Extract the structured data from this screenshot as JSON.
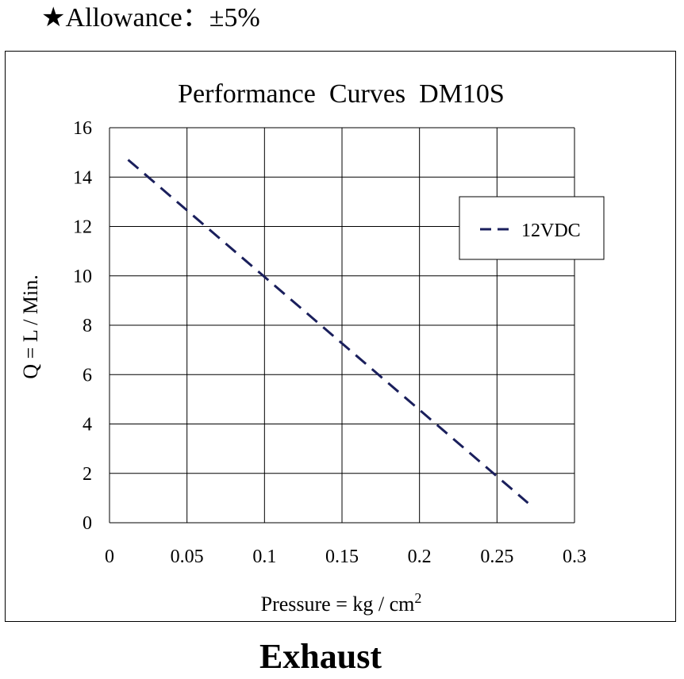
{
  "header": {
    "star_glyph": "★",
    "allowance_text": "Allowance：±5%"
  },
  "chart_data": {
    "type": "line",
    "title": "Performance  Curves  DM10S",
    "xlabel": "Pressure = kg / cm",
    "xlabel_superscript": "2",
    "ylabel": "Q = L / Min.",
    "xlim": [
      0,
      0.3
    ],
    "ylim": [
      0,
      16
    ],
    "xticks": [
      0,
      0.05,
      0.1,
      0.15,
      0.2,
      0.25,
      0.3
    ],
    "xtick_labels": [
      "0",
      "0.05",
      "0.1",
      "0.15",
      "0.2",
      "0.25",
      "0.3"
    ],
    "yticks": [
      0,
      2,
      4,
      6,
      8,
      10,
      12,
      14,
      16
    ],
    "ytick_labels": [
      "0",
      "2",
      "4",
      "6",
      "8",
      "10",
      "12",
      "14",
      "16"
    ],
    "grid": true,
    "legend_position": "top-right",
    "series": [
      {
        "name": "12VDC",
        "color": "#1a1f5c",
        "line_style": "dashed",
        "x": [
          0.012,
          0.27
        ],
        "y": [
          14.7,
          0.8
        ]
      }
    ]
  },
  "footer": {
    "caption": "Exhaust"
  }
}
